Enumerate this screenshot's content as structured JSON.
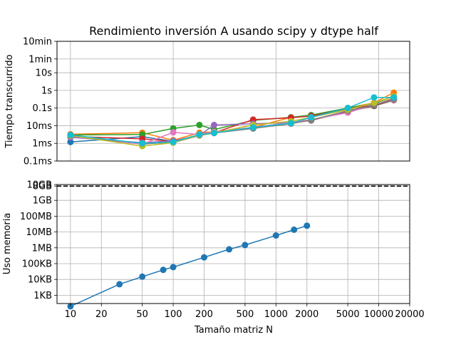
{
  "chart_data": [
    {
      "type": "line",
      "title": "Rendimiento inversión A usando scipy y dtype half",
      "xlabel": "",
      "ylabel": "Tiempo transcurrido",
      "x_scale": "log",
      "y_scale": "log",
      "xlim": [
        7.4,
        20000
      ],
      "ylim_seconds": [
        0.0001,
        600
      ],
      "yticks": [
        {
          "value": 0.0001,
          "label": "0.1ms"
        },
        {
          "value": 0.001,
          "label": "1ms"
        },
        {
          "value": 0.01,
          "label": "10ms"
        },
        {
          "value": 0.1,
          "label": "0.1s"
        },
        {
          "value": 1,
          "label": "1s"
        },
        {
          "value": 10,
          "label": "10s"
        },
        {
          "value": 60,
          "label": "1min"
        },
        {
          "value": 600,
          "label": "10min"
        }
      ],
      "grid": "major x at 10, 100, 1000, 10000; all y ticks",
      "series": [
        {
          "color": "#1f77b4",
          "x": [
            10,
            50,
            100,
            180,
            250,
            600,
            1400,
            2200,
            5000,
            9000,
            14000
          ],
          "y": [
            0.0012,
            0.0024,
            0.0013,
            0.003,
            0.004,
            0.007,
            0.0145,
            0.021,
            0.06,
            0.14,
            0.33
          ]
        },
        {
          "color": "#ff7f0e",
          "x": [
            10,
            50,
            100,
            180,
            250,
            600,
            1400,
            2200,
            5000,
            9000,
            14000
          ],
          "y": [
            0.0033,
            0.004,
            0.0015,
            0.004,
            0.0045,
            0.008,
            0.03,
            0.038,
            0.1,
            0.2,
            0.75
          ]
        },
        {
          "color": "#2ca02c",
          "x": [
            10,
            50,
            100,
            180,
            250,
            600,
            1400,
            2200,
            5000,
            9000,
            14000
          ],
          "y": [
            0.003,
            0.0032,
            0.007,
            0.011,
            0.006,
            0.02,
            0.03,
            0.04,
            0.1,
            0.18,
            0.45
          ]
        },
        {
          "color": "#d62728",
          "x": [
            10,
            50,
            100,
            180,
            250,
            600,
            1400,
            2200,
            5000,
            9000,
            14000
          ],
          "y": [
            0.0025,
            0.0018,
            0.0013,
            0.003,
            0.004,
            0.022,
            0.028,
            0.035,
            0.09,
            0.15,
            0.35
          ]
        },
        {
          "color": "#9467bd",
          "x": [
            10,
            50,
            100,
            180,
            250,
            600,
            1400,
            2200,
            5000,
            9000,
            14000
          ],
          "y": [
            0.0022,
            0.0011,
            0.0014,
            0.0028,
            0.011,
            0.013,
            0.015,
            0.02,
            0.07,
            0.14,
            0.3
          ]
        },
        {
          "color": "#8c564b",
          "x": [
            10,
            50,
            100,
            180,
            250,
            600,
            1400,
            2200,
            5000,
            9000,
            14000
          ],
          "y": [
            0.003,
            0.0009,
            0.0012,
            0.003,
            0.004,
            0.0075,
            0.014,
            0.02,
            0.065,
            0.13,
            0.28
          ]
        },
        {
          "color": "#e377c2",
          "x": [
            10,
            50,
            100,
            180,
            250,
            600,
            1400,
            2200,
            5000,
            9000,
            14000
          ],
          "y": [
            0.0025,
            0.0009,
            0.0042,
            0.0032,
            0.0045,
            0.008,
            0.0155,
            0.022,
            0.055,
            0.16,
            0.3
          ]
        },
        {
          "color": "#7f7f7f",
          "x": [
            10,
            50,
            100,
            180,
            250,
            600,
            1400,
            2200,
            5000,
            9000,
            14000
          ],
          "y": [
            0.0026,
            0.001,
            0.0011,
            0.0028,
            0.0038,
            0.007,
            0.013,
            0.021,
            0.07,
            0.15,
            0.32
          ]
        },
        {
          "color": "#bcbd22",
          "x": [
            10,
            50,
            100,
            180,
            250,
            600,
            1400,
            2200,
            5000,
            9000,
            14000
          ],
          "y": [
            0.0028,
            0.0007,
            0.0011,
            0.003,
            0.004,
            0.011,
            0.018,
            0.03,
            0.08,
            0.2,
            0.45
          ]
        },
        {
          "color": "#17becf",
          "x": [
            10,
            50,
            100,
            180,
            250,
            600,
            1400,
            2200,
            5000,
            9000,
            14000
          ],
          "y": [
            0.003,
            0.001,
            0.0012,
            0.0032,
            0.0039,
            0.008,
            0.014,
            0.03,
            0.1,
            0.4,
            0.4
          ]
        }
      ]
    },
    {
      "type": "line",
      "title": "",
      "xlabel": "Tamaño matriz N",
      "ylabel": "Uso memoria",
      "x_scale": "log",
      "y_scale": "log",
      "xlim": [
        7.4,
        20000
      ],
      "ylim_bytes": [
        300,
        10000000000
      ],
      "xticks": [
        {
          "value": 10,
          "label": "10"
        },
        {
          "value": 20,
          "label": "20"
        },
        {
          "value": 50,
          "label": "50"
        },
        {
          "value": 100,
          "label": "100"
        },
        {
          "value": 200,
          "label": "200"
        },
        {
          "value": 500,
          "label": "500"
        },
        {
          "value": 1000,
          "label": "1000"
        },
        {
          "value": 2000,
          "label": "2000"
        },
        {
          "value": 5000,
          "label": "5000"
        },
        {
          "value": 10000,
          "label": "10000"
        },
        {
          "value": 20000,
          "label": "20000"
        }
      ],
      "yticks": [
        {
          "value": 1000,
          "label": "1KB"
        },
        {
          "value": 10000,
          "label": "10KB"
        },
        {
          "value": 100000,
          "label": "100KB"
        },
        {
          "value": 1000000,
          "label": "1MB"
        },
        {
          "value": 10000000,
          "label": "10MB"
        },
        {
          "value": 100000000,
          "label": "100MB"
        },
        {
          "value": 1000000000,
          "label": "1GB"
        },
        {
          "value": 8000000000,
          "label": "8GB"
        },
        {
          "value": 10000000000,
          "label": "10GB"
        }
      ],
      "reference_line": {
        "y": 8000000000,
        "style": "dashed",
        "color": "#000000"
      },
      "grid": "all ticks",
      "series": [
        {
          "color": "#1f77b4",
          "x": [
            10,
            30,
            50,
            80,
            100,
            200,
            350,
            500,
            1000,
            1500,
            2000
          ],
          "y": [
            200,
            5000,
            15000,
            40000,
            60000,
            250000,
            800000,
            1500000,
            6000000,
            14000000,
            25000000
          ]
        }
      ]
    }
  ]
}
